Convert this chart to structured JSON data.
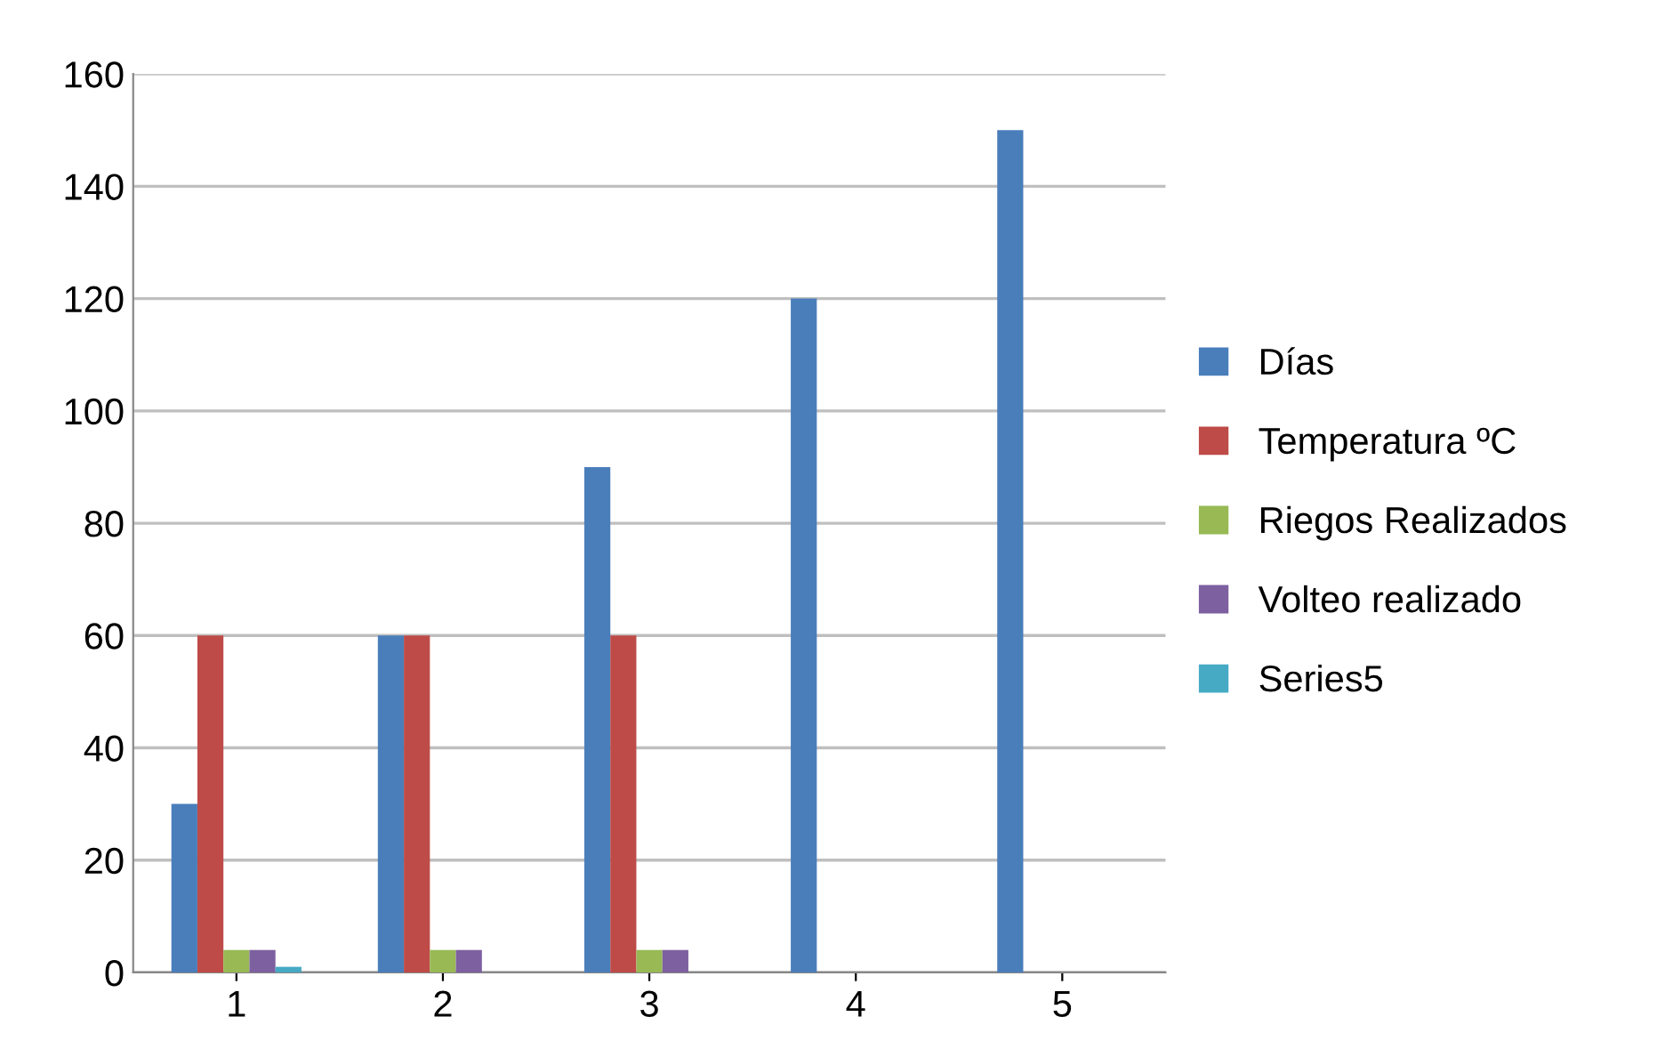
{
  "chart_data": {
    "type": "bar",
    "categories": [
      "1",
      "2",
      "3",
      "4",
      "5"
    ],
    "series": [
      {
        "name": "Días",
        "color": "#4a7ebb",
        "values": [
          30,
          60,
          90,
          120,
          150
        ]
      },
      {
        "name": "Temperatura ºC",
        "color": "#be4b48",
        "values": [
          60,
          60,
          60,
          null,
          null
        ]
      },
      {
        "name": "Riegos Realizados",
        "color": "#98b954",
        "values": [
          4,
          4,
          4,
          null,
          null
        ]
      },
      {
        "name": "Volteo realizado",
        "color": "#7d60a0",
        "values": [
          4,
          4,
          4,
          null,
          null
        ]
      },
      {
        "name": "Series5",
        "color": "#46aac5",
        "values": [
          1,
          null,
          null,
          null,
          null
        ]
      }
    ],
    "ylim": [
      0,
      160
    ],
    "yticks": [
      0,
      20,
      40,
      60,
      80,
      100,
      120,
      140,
      160
    ],
    "grid": "y",
    "legend": "right"
  }
}
